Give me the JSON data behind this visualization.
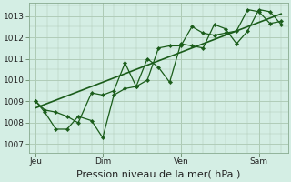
{
  "bg_color": "#d4eee4",
  "grid_color": "#b0ccb8",
  "line_color": "#1a5c1a",
  "ylabel_values": [
    1007,
    1008,
    1009,
    1010,
    1011,
    1012,
    1013
  ],
  "x_ticks_pos": [
    0.0,
    3.0,
    6.5,
    10.0
  ],
  "x_tick_labels": [
    "Jeu",
    "Dim",
    "Ven",
    "Sam"
  ],
  "xlabel": "Pression niveau de la mer( hPa )",
  "ylim": [
    1006.6,
    1013.6
  ],
  "xlim": [
    -0.3,
    11.3
  ],
  "series1_x": [
    0.0,
    0.4,
    0.9,
    1.4,
    1.9,
    2.5,
    3.0,
    3.5,
    4.0,
    4.5,
    5.0,
    5.5,
    6.0,
    6.5,
    7.0,
    7.5,
    8.0,
    8.5,
    9.0,
    9.5,
    10.0,
    10.5,
    11.0
  ],
  "series1_y": [
    1009.0,
    1008.5,
    1007.7,
    1007.7,
    1008.3,
    1008.1,
    1007.3,
    1009.3,
    1009.6,
    1009.7,
    1011.0,
    1010.6,
    1009.9,
    1011.7,
    1011.6,
    1011.5,
    1012.6,
    1012.4,
    1011.7,
    1012.3,
    1013.3,
    1013.2,
    1012.6
  ],
  "series2_x": [
    0.0,
    0.4,
    0.9,
    1.4,
    1.9,
    2.5,
    3.0,
    3.5,
    4.0,
    4.5,
    5.0,
    5.5,
    6.0,
    6.5,
    7.0,
    7.5,
    8.0,
    8.5,
    9.0,
    9.5,
    10.0,
    10.5,
    11.0
  ],
  "series2_y": [
    1009.0,
    1008.6,
    1008.5,
    1008.3,
    1008.0,
    1009.4,
    1009.3,
    1009.5,
    1010.8,
    1009.7,
    1010.0,
    1011.5,
    1011.6,
    1011.6,
    1012.5,
    1012.2,
    1012.1,
    1012.2,
    1012.3,
    1013.3,
    1013.2,
    1012.65,
    1012.75
  ],
  "trend_x": [
    0.0,
    11.0
  ],
  "trend_y": [
    1008.7,
    1013.1
  ],
  "figsize": [
    3.2,
    2.0
  ],
  "dpi": 100
}
